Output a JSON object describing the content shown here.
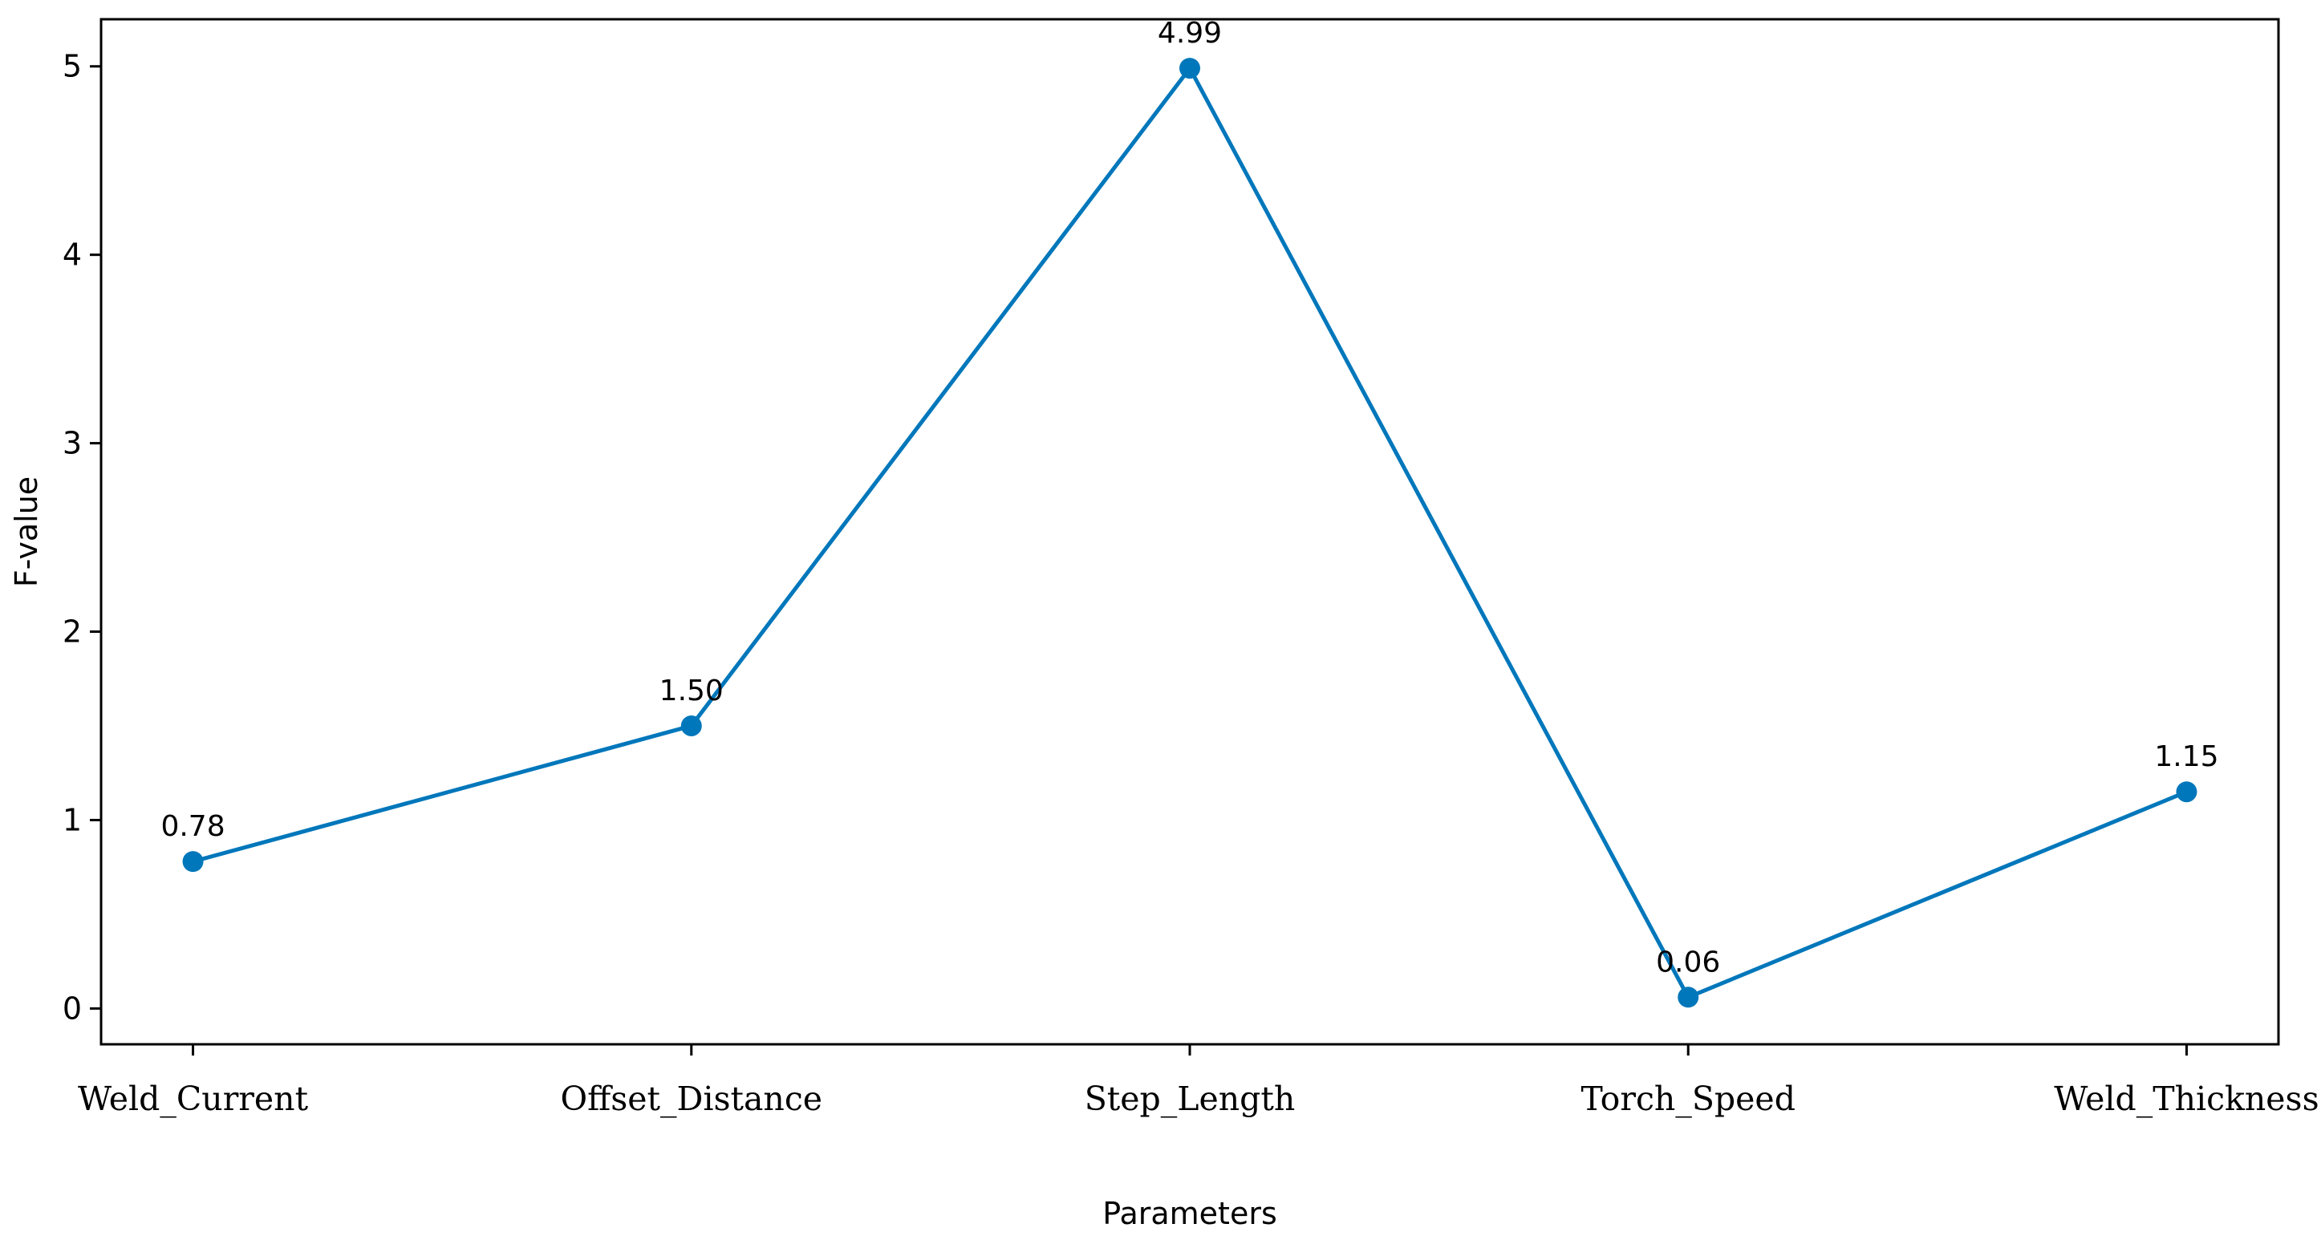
{
  "chart_data": {
    "type": "line",
    "categories": [
      "Weld_Current",
      "Offset_Distance",
      "Step_Length",
      "Torch_Speed",
      "Weld_Thickness"
    ],
    "series": [
      {
        "values": [
          0.78,
          1.5,
          4.99,
          0.06,
          1.15
        ]
      }
    ],
    "data_labels": [
      "0.78",
      "1.50",
      "4.99",
      "0.06",
      "1.15"
    ],
    "xlabel": "Parameters",
    "ylabel": "F-value",
    "ylim": [
      -0.19,
      5.25
    ],
    "yticks": [
      0,
      1,
      2,
      3,
      4,
      5
    ],
    "ytick_labels": [
      "0",
      "1",
      "2",
      "3",
      "4",
      "5"
    ],
    "grid": false,
    "color": "#0077bb"
  }
}
